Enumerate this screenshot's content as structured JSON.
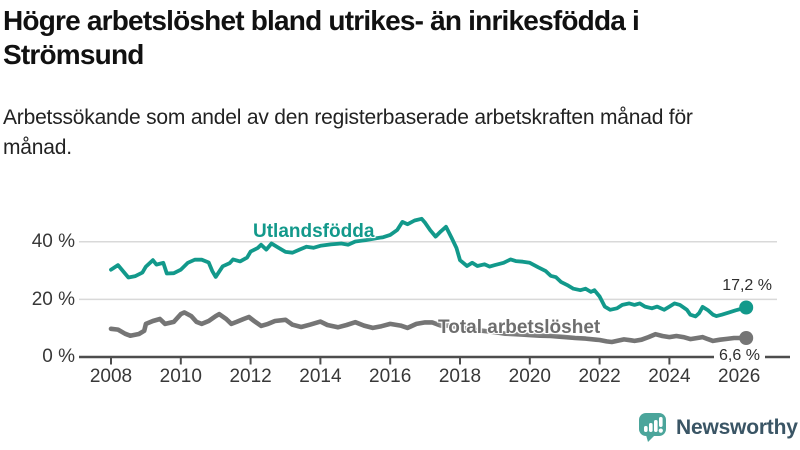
{
  "header": {
    "title": "Högre arbetslöshet bland utrikes- än inrikesfödda i Strömsund",
    "subtitle": "Arbetssökande som andel av den registerbaserade arbetskraften månad för månad."
  },
  "chart_data": {
    "type": "line",
    "title": "Högre arbetslöshet bland utrikes- än inrikesfödda i Strömsund",
    "subtitle": "Arbetssökande som andel av den registerbaserade arbetskraften månad för månad.",
    "xlabel": "",
    "ylabel": "",
    "unit": "%",
    "xlim": [
      2007.9,
      2026.4
    ],
    "ylim": [
      0,
      50
    ],
    "grid": "horizontal",
    "grid_color": "#d9d9d9",
    "axis_color": "#4d4d4d",
    "x_ticks": [
      2008,
      2010,
      2012,
      2014,
      2016,
      2018,
      2020,
      2022,
      2024,
      2026
    ],
    "y_gridlines": [
      20,
      40
    ],
    "y_tick_labels": [
      "0 %",
      "20 %",
      "40 %"
    ],
    "legend_position": "inline-annotations",
    "series": [
      {
        "name": "Utlandsfödda",
        "color": "#12998b",
        "end_label": "17,2 %",
        "end_value": 17.2,
        "points": [
          [
            2008.0,
            30.3
          ],
          [
            2008.2,
            31.9
          ],
          [
            2008.4,
            29.0
          ],
          [
            2008.5,
            27.6
          ],
          [
            2008.7,
            28.1
          ],
          [
            2008.9,
            29.3
          ],
          [
            2009.0,
            31.4
          ],
          [
            2009.2,
            33.6
          ],
          [
            2009.3,
            32.1
          ],
          [
            2009.5,
            32.7
          ],
          [
            2009.6,
            29.0
          ],
          [
            2009.8,
            29.1
          ],
          [
            2010.0,
            30.3
          ],
          [
            2010.2,
            32.7
          ],
          [
            2010.4,
            33.8
          ],
          [
            2010.6,
            33.8
          ],
          [
            2010.8,
            32.8
          ],
          [
            2010.9,
            29.9
          ],
          [
            2011.0,
            27.8
          ],
          [
            2011.2,
            31.5
          ],
          [
            2011.4,
            32.6
          ],
          [
            2011.5,
            33.9
          ],
          [
            2011.7,
            33.2
          ],
          [
            2011.9,
            34.5
          ],
          [
            2012.0,
            36.6
          ],
          [
            2012.2,
            37.8
          ],
          [
            2012.3,
            39.0
          ],
          [
            2012.45,
            37.3
          ],
          [
            2012.6,
            39.4
          ],
          [
            2012.8,
            37.9
          ],
          [
            2013.0,
            36.5
          ],
          [
            2013.2,
            36.2
          ],
          [
            2013.4,
            37.3
          ],
          [
            2013.6,
            38.3
          ],
          [
            2013.8,
            37.9
          ],
          [
            2014.0,
            38.6
          ],
          [
            2014.3,
            39.1
          ],
          [
            2014.6,
            39.4
          ],
          [
            2014.8,
            39.0
          ],
          [
            2015.0,
            40.1
          ],
          [
            2015.3,
            40.6
          ],
          [
            2015.6,
            41.2
          ],
          [
            2015.8,
            41.6
          ],
          [
            2016.0,
            42.4
          ],
          [
            2016.2,
            44.1
          ],
          [
            2016.35,
            46.9
          ],
          [
            2016.5,
            46.1
          ],
          [
            2016.7,
            47.4
          ],
          [
            2016.9,
            48.0
          ],
          [
            2017.0,
            46.6
          ],
          [
            2017.15,
            44.0
          ],
          [
            2017.3,
            41.8
          ],
          [
            2017.45,
            43.6
          ],
          [
            2017.6,
            45.2
          ],
          [
            2017.75,
            41.6
          ],
          [
            2017.9,
            37.8
          ],
          [
            2018.0,
            33.6
          ],
          [
            2018.2,
            31.6
          ],
          [
            2018.35,
            32.7
          ],
          [
            2018.5,
            31.6
          ],
          [
            2018.7,
            32.2
          ],
          [
            2018.85,
            31.4
          ],
          [
            2019.0,
            31.9
          ],
          [
            2019.25,
            32.7
          ],
          [
            2019.45,
            33.9
          ],
          [
            2019.6,
            33.3
          ],
          [
            2019.8,
            33.1
          ],
          [
            2020.0,
            32.7
          ],
          [
            2020.25,
            31.1
          ],
          [
            2020.45,
            29.9
          ],
          [
            2020.6,
            28.2
          ],
          [
            2020.75,
            27.7
          ],
          [
            2020.9,
            26.0
          ],
          [
            2021.1,
            24.8
          ],
          [
            2021.25,
            23.7
          ],
          [
            2021.45,
            23.2
          ],
          [
            2021.6,
            23.7
          ],
          [
            2021.75,
            22.6
          ],
          [
            2021.85,
            23.2
          ],
          [
            2022.0,
            21.0
          ],
          [
            2022.15,
            17.5
          ],
          [
            2022.3,
            16.4
          ],
          [
            2022.5,
            16.9
          ],
          [
            2022.65,
            18.1
          ],
          [
            2022.85,
            18.6
          ],
          [
            2023.0,
            18.1
          ],
          [
            2023.15,
            18.6
          ],
          [
            2023.3,
            17.5
          ],
          [
            2023.5,
            16.9
          ],
          [
            2023.65,
            17.5
          ],
          [
            2023.85,
            16.4
          ],
          [
            2024.0,
            17.5
          ],
          [
            2024.15,
            18.6
          ],
          [
            2024.3,
            18.1
          ],
          [
            2024.5,
            16.4
          ],
          [
            2024.6,
            14.7
          ],
          [
            2024.75,
            14.1
          ],
          [
            2024.85,
            15.2
          ],
          [
            2024.95,
            17.4
          ],
          [
            2025.1,
            16.3
          ],
          [
            2025.25,
            14.7
          ],
          [
            2025.35,
            14.2
          ],
          [
            2025.5,
            14.7
          ],
          [
            2025.7,
            15.4
          ],
          [
            2025.9,
            16.2
          ],
          [
            2026.2,
            17.2
          ]
        ]
      },
      {
        "name": "Total arbetslöshet",
        "color": "#757575",
        "end_label": "6,6 %",
        "end_value": 6.6,
        "points": [
          [
            2008.0,
            9.8
          ],
          [
            2008.2,
            9.5
          ],
          [
            2008.4,
            8.1
          ],
          [
            2008.55,
            7.4
          ],
          [
            2008.8,
            8.0
          ],
          [
            2008.95,
            9.1
          ],
          [
            2009.0,
            11.5
          ],
          [
            2009.2,
            12.5
          ],
          [
            2009.4,
            13.2
          ],
          [
            2009.55,
            11.5
          ],
          [
            2009.8,
            12.2
          ],
          [
            2010.0,
            14.9
          ],
          [
            2010.1,
            15.5
          ],
          [
            2010.3,
            14.2
          ],
          [
            2010.45,
            12.2
          ],
          [
            2010.6,
            11.5
          ],
          [
            2010.8,
            12.5
          ],
          [
            2011.0,
            14.2
          ],
          [
            2011.1,
            14.9
          ],
          [
            2011.3,
            13.2
          ],
          [
            2011.45,
            11.5
          ],
          [
            2011.6,
            12.2
          ],
          [
            2011.8,
            13.2
          ],
          [
            2011.95,
            13.9
          ],
          [
            2012.1,
            12.5
          ],
          [
            2012.3,
            10.8
          ],
          [
            2012.5,
            11.5
          ],
          [
            2012.7,
            12.5
          ],
          [
            2013.0,
            12.9
          ],
          [
            2013.2,
            11.2
          ],
          [
            2013.45,
            10.4
          ],
          [
            2013.7,
            11.2
          ],
          [
            2014.0,
            12.3
          ],
          [
            2014.2,
            11.1
          ],
          [
            2014.5,
            10.3
          ],
          [
            2014.75,
            11.1
          ],
          [
            2015.0,
            12.1
          ],
          [
            2015.25,
            10.9
          ],
          [
            2015.5,
            10.1
          ],
          [
            2015.75,
            10.7
          ],
          [
            2016.0,
            11.5
          ],
          [
            2016.3,
            10.9
          ],
          [
            2016.5,
            10.1
          ],
          [
            2016.75,
            11.5
          ],
          [
            2017.0,
            12.0
          ],
          [
            2017.2,
            12.0
          ],
          [
            2017.45,
            10.9
          ],
          [
            2017.7,
            10.9
          ],
          [
            2018.0,
            10.3
          ],
          [
            2018.2,
            9.8
          ],
          [
            2018.5,
            9.3
          ],
          [
            2018.8,
            8.9
          ],
          [
            2019.0,
            8.6
          ],
          [
            2019.3,
            8.1
          ],
          [
            2019.6,
            7.9
          ],
          [
            2019.9,
            7.7
          ],
          [
            2020.0,
            7.6
          ],
          [
            2020.3,
            7.4
          ],
          [
            2020.6,
            7.3
          ],
          [
            2020.9,
            7.0
          ],
          [
            2021.0,
            6.9
          ],
          [
            2021.3,
            6.6
          ],
          [
            2021.6,
            6.4
          ],
          [
            2021.9,
            6.0
          ],
          [
            2022.0,
            5.9
          ],
          [
            2022.2,
            5.4
          ],
          [
            2022.35,
            5.2
          ],
          [
            2022.5,
            5.6
          ],
          [
            2022.7,
            6.1
          ],
          [
            2022.9,
            5.8
          ],
          [
            2023.0,
            5.6
          ],
          [
            2023.2,
            6.0
          ],
          [
            2023.4,
            6.9
          ],
          [
            2023.6,
            7.9
          ],
          [
            2023.8,
            7.3
          ],
          [
            2024.0,
            6.9
          ],
          [
            2024.2,
            7.3
          ],
          [
            2024.4,
            6.9
          ],
          [
            2024.6,
            6.2
          ],
          [
            2024.8,
            6.6
          ],
          [
            2024.95,
            6.9
          ],
          [
            2025.1,
            6.2
          ],
          [
            2025.25,
            5.6
          ],
          [
            2025.45,
            6.0
          ],
          [
            2025.65,
            6.3
          ],
          [
            2025.85,
            6.6
          ],
          [
            2026.2,
            6.6
          ]
        ]
      }
    ]
  },
  "footer": {
    "brand": "Newsworthy",
    "brand_color": "#3a5565",
    "brand_icon": "newsworthy-speech-bubble-bar-chart-icon",
    "brand_icon_color": "#4ba59b"
  }
}
